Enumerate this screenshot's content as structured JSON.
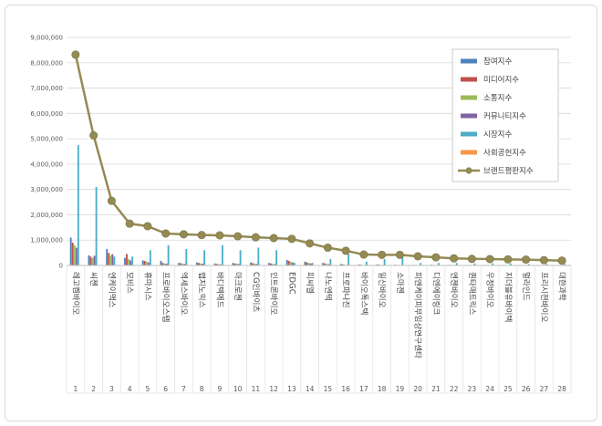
{
  "chart_data": {
    "type": "bar",
    "ylim": [
      0,
      9000000
    ],
    "y_ticks": [
      "0",
      "1,000,000",
      "2,000,000",
      "3,000,000",
      "4,000,000",
      "5,000,000",
      "6,000,000",
      "7,000,000",
      "8,000,000",
      "9,000,000"
    ],
    "grid": true,
    "legend_position": "top-right",
    "categories": [
      "레고켐바이오",
      "씨젠",
      "엔케이맥스",
      "모비스",
      "휴마시스",
      "프로바이오스텝",
      "엑세스바이오",
      "랩지노믹스",
      "바디텍메드",
      "마크로젠",
      "CG인바이츠",
      "인트론바이오",
      "EDGC",
      "피씨엘",
      "나노엔텍",
      "프로파나진",
      "바이오톡스텍",
      "일신바이오",
      "소마젠",
      "피엔케이피부임상연구센타",
      "디엔에이링크",
      "엔젠바이오",
      "퀀타매트릭스",
      "우정바이오",
      "지더블유바이텍",
      "멀라인드",
      "프리시젼바이오",
      "대한과학"
    ],
    "index_labels": [
      "1",
      "2",
      "3",
      "4",
      "5",
      "6",
      "7",
      "8",
      "9",
      "10",
      "11",
      "12",
      "13",
      "14",
      "15",
      "16",
      "17",
      "18",
      "19",
      "20",
      "21",
      "22",
      "23",
      "24",
      "25",
      "26",
      "27",
      "28"
    ],
    "series": [
      {
        "name": "참여지수",
        "kind": "bar",
        "color": "#4f81bd",
        "values": [
          1100000,
          400000,
          650000,
          300000,
          200000,
          180000,
          100000,
          120000,
          80000,
          100000,
          120000,
          100000,
          220000,
          150000,
          100000,
          60000,
          40000,
          40000,
          30000,
          20000,
          30000,
          20000,
          20000,
          20000,
          20000,
          15000,
          15000,
          10000
        ]
      },
      {
        "name": "미디어지수",
        "kind": "bar",
        "color": "#c0504d",
        "values": [
          900000,
          350000,
          500000,
          450000,
          180000,
          100000,
          90000,
          100000,
          60000,
          80000,
          90000,
          80000,
          180000,
          120000,
          80000,
          40000,
          30000,
          30000,
          20000,
          20000,
          20000,
          20000,
          15000,
          15000,
          15000,
          10000,
          10000,
          10000
        ]
      },
      {
        "name": "소통지수",
        "kind": "bar",
        "color": "#9bbb59",
        "values": [
          800000,
          300000,
          400000,
          250000,
          150000,
          80000,
          70000,
          80000,
          50000,
          70000,
          70000,
          60000,
          150000,
          100000,
          60000,
          30000,
          20000,
          20000,
          20000,
          15000,
          15000,
          15000,
          10000,
          10000,
          10000,
          10000,
          10000,
          5000
        ]
      },
      {
        "name": "커뮤니티지수",
        "kind": "bar",
        "color": "#8064a2",
        "values": [
          700000,
          380000,
          450000,
          200000,
          120000,
          70000,
          60000,
          70000,
          40000,
          60000,
          60000,
          50000,
          120000,
          80000,
          50000,
          20000,
          20000,
          20000,
          15000,
          10000,
          10000,
          10000,
          10000,
          10000,
          10000,
          5000,
          5000,
          5000
        ]
      },
      {
        "name": "시장지수",
        "kind": "bar",
        "color": "#4bacc6",
        "values": [
          4750000,
          3100000,
          350000,
          350000,
          600000,
          800000,
          650000,
          600000,
          800000,
          600000,
          700000,
          600000,
          100000,
          100000,
          250000,
          450000,
          150000,
          250000,
          350000,
          100000,
          100000,
          100000,
          80000,
          80000,
          80000,
          60000,
          60000,
          50000
        ]
      },
      {
        "name": "사회공헌지수",
        "kind": "bar",
        "color": "#f79646",
        "values": [
          0,
          0,
          0,
          0,
          0,
          0,
          0,
          0,
          0,
          0,
          0,
          0,
          0,
          0,
          0,
          0,
          0,
          0,
          0,
          0,
          0,
          0,
          0,
          0,
          0,
          0,
          0,
          0
        ]
      },
      {
        "name": "브랜드평판지수",
        "kind": "line",
        "color": "#948a54",
        "values": [
          8320000,
          5130000,
          2550000,
          1650000,
          1550000,
          1260000,
          1230000,
          1200000,
          1190000,
          1150000,
          1110000,
          1080000,
          1050000,
          870000,
          700000,
          580000,
          430000,
          420000,
          420000,
          360000,
          320000,
          280000,
          260000,
          250000,
          240000,
          230000,
          210000,
          190000
        ]
      }
    ]
  }
}
